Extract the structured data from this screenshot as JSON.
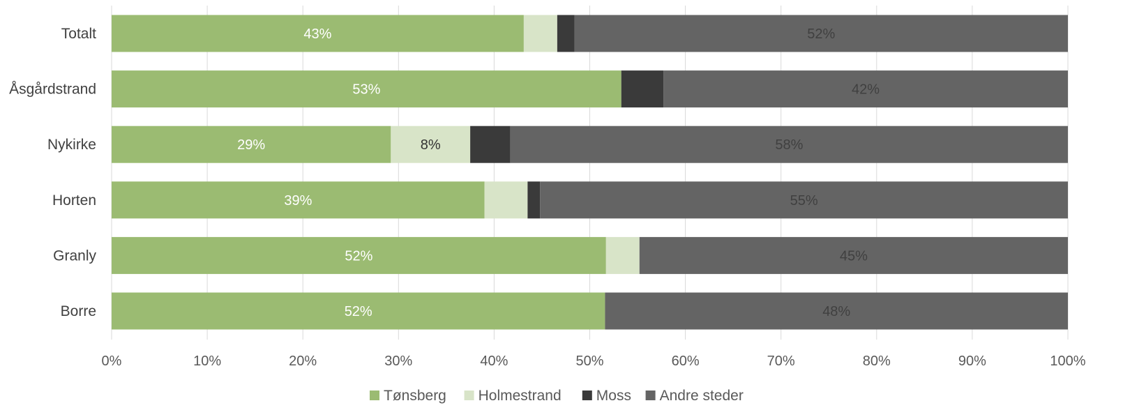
{
  "chart_data": {
    "type": "bar",
    "orientation": "horizontal",
    "stacked": "percent",
    "categories": [
      "Totalt",
      "Åsgårdstrand",
      "Nykirke",
      "Horten",
      "Granly",
      "Borre"
    ],
    "series": [
      {
        "name": "Tønsberg",
        "color": "#9bbb72",
        "label_color": "#ffffff",
        "values": [
          43.1,
          53.3,
          29.2,
          39.0,
          51.7,
          51.6
        ],
        "labels": [
          "43%",
          "53%",
          "29%",
          "39%",
          "52%",
          "52%"
        ]
      },
      {
        "name": "Holmestrand",
        "color": "#d8e4c8",
        "label_color": "#333333",
        "values": [
          3.5,
          0,
          8.3,
          4.5,
          3.5,
          0
        ],
        "labels": [
          "",
          "",
          "8%",
          "",
          "",
          ""
        ]
      },
      {
        "name": "Moss",
        "color": "#3a3a3a",
        "label_color": "#ffffff",
        "values": [
          1.8,
          4.4,
          4.2,
          1.3,
          0,
          0
        ],
        "labels": [
          "",
          "",
          "",
          "",
          "",
          ""
        ]
      },
      {
        "name": "Andre steder",
        "color": "#646464",
        "label_color": "#404040",
        "values": [
          51.6,
          42.3,
          58.3,
          55.2,
          44.8,
          48.4
        ],
        "labels": [
          "52%",
          "42%",
          "58%",
          "55%",
          "45%",
          "48%"
        ]
      }
    ],
    "x_ticks": [
      "0%",
      "10%",
      "20%",
      "30%",
      "40%",
      "50%",
      "60%",
      "70%",
      "80%",
      "90%",
      "100%"
    ],
    "xlim": [
      0,
      100
    ],
    "grid": "vertical",
    "legend": "bottom"
  }
}
